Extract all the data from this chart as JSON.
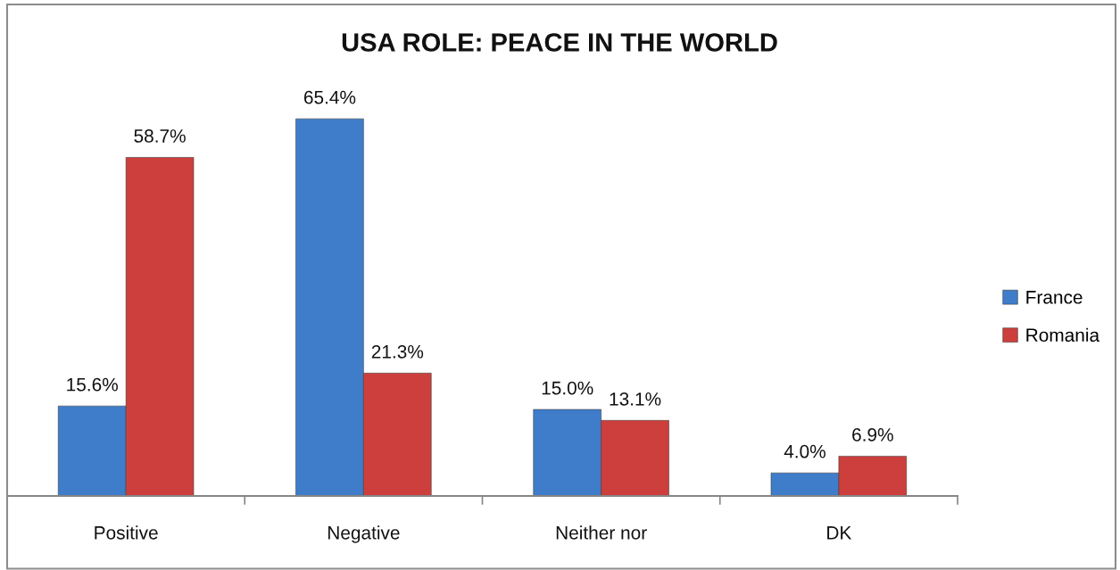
{
  "chart_data": {
    "type": "bar",
    "title": "USA ROLE: PEACE IN THE WORLD",
    "categories": [
      "Positive",
      "Negative",
      "Neither nor",
      "DK"
    ],
    "series": [
      {
        "name": "France",
        "color": "#3f7cc9",
        "values": [
          15.6,
          65.4,
          15.0,
          4.0
        ],
        "value_labels": [
          "15.6%",
          "65.4%",
          "15.0%",
          "4.0%"
        ]
      },
      {
        "name": "Romania",
        "color": "#cc3f3c",
        "values": [
          58.7,
          21.3,
          13.1,
          6.9
        ],
        "value_labels": [
          "58.7%",
          "21.3%",
          "13.1%",
          "6.9%"
        ]
      }
    ],
    "legend": "right",
    "grid": false
  }
}
